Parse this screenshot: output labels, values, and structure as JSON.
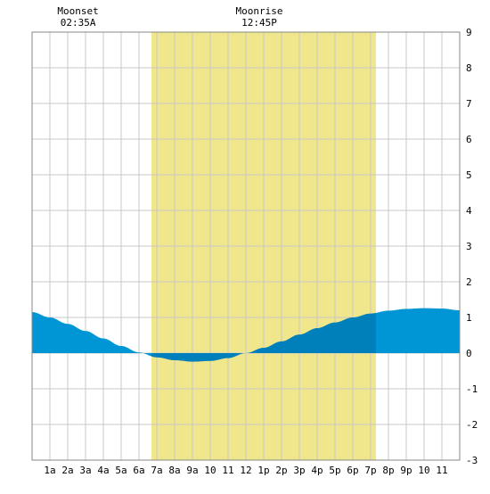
{
  "chart_data": {
    "type": "area",
    "title": "",
    "xlabel": "",
    "ylabel": "",
    "ylim": [
      -3,
      9
    ],
    "xlim": [
      0,
      24
    ],
    "grid": true,
    "x_tick_labels": [
      "1a",
      "2a",
      "3a",
      "4a",
      "5a",
      "6a",
      "7a",
      "8a",
      "9a",
      "10",
      "11",
      "12",
      "1p",
      "2p",
      "3p",
      "4p",
      "5p",
      "6p",
      "7p",
      "8p",
      "9p",
      "10",
      "11"
    ],
    "y_tick_labels": [
      "-3",
      "-2",
      "-1",
      "0",
      "1",
      "2",
      "3",
      "4",
      "5",
      "6",
      "7",
      "8",
      "9"
    ],
    "daylight": {
      "start_hour": 6.7,
      "end_hour": 19.3,
      "color": "#f0e68c"
    },
    "moon_events": [
      {
        "name": "Moonset",
        "time": "02:35A",
        "hour": 2.58
      },
      {
        "name": "Moonrise",
        "time": "12:45P",
        "hour": 12.75
      }
    ],
    "colors": {
      "night_fill": "#0096d6",
      "day_fill": "#0080bb",
      "grid": "#c8c8c8"
    },
    "series": [
      {
        "x": [
          0,
          1,
          2,
          3,
          4,
          5,
          6,
          7,
          8,
          9,
          10,
          11,
          12,
          13,
          14,
          15,
          16,
          17,
          18,
          19,
          20,
          21,
          22,
          23,
          24
        ],
        "values": [
          1.15,
          1.0,
          0.82,
          0.62,
          0.41,
          0.2,
          0.02,
          -0.12,
          -0.2,
          -0.24,
          -0.22,
          -0.14,
          0.0,
          0.15,
          0.33,
          0.52,
          0.7,
          0.86,
          1.0,
          1.11,
          1.19,
          1.24,
          1.26,
          1.25,
          1.2
        ]
      }
    ]
  }
}
